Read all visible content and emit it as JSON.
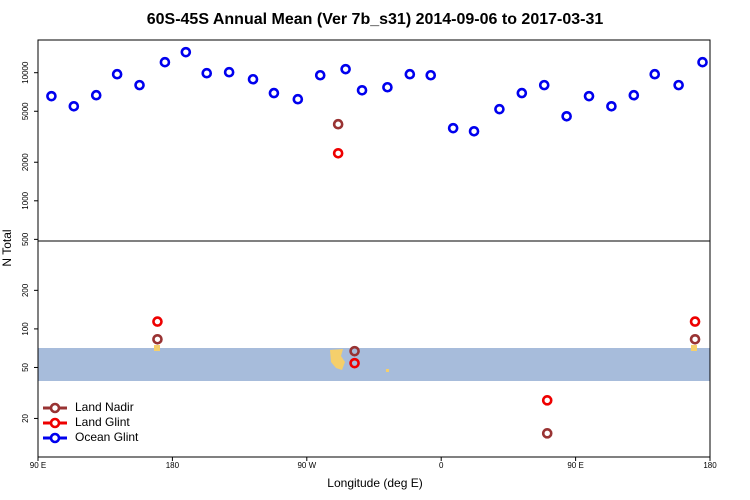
{
  "chart_data": {
    "type": "scatter",
    "title": "60S-45S Annual Mean (Ver 7b_s31)   2014-09-06 to 2017-03-31",
    "x_label": "Longitude (deg E)",
    "y_label": "N Total",
    "log_y": true,
    "legend": "lower left",
    "xlim": [
      90,
      540
    ],
    "xticks": [
      {
        "value": 90,
        "label": "90 E"
      },
      180,
      {
        "value": 270,
        "label": "90 W"
      },
      {
        "value": 360,
        "label": "0"
      },
      {
        "value": 450,
        "label": "90 E"
      },
      {
        "value": 540,
        "label": "180"
      }
    ],
    "ylim": [
      10,
      18000
    ],
    "yticks": [
      20,
      50,
      100,
      200,
      500,
      1000,
      2000,
      5000,
      10000
    ],
    "series": [
      {
        "name": "Land Nadir",
        "color": "#993333",
        "x": [
          291,
          170,
          302,
          431,
          530
        ],
        "values": [
          3960,
          83,
          67,
          15.3,
          83
        ]
      },
      {
        "name": "Land Glint",
        "color": "#ee0000",
        "x": [
          291,
          170,
          302,
          431,
          530
        ],
        "values": [
          2350,
          114,
          54,
          27.7,
          114
        ]
      },
      {
        "name": "Ocean Glint",
        "color": "#0000ee",
        "x": [
          99,
          114,
          129,
          143,
          158,
          175,
          189,
          203,
          218,
          234,
          248,
          264,
          279,
          296,
          307,
          324,
          339,
          353,
          368,
          382,
          399,
          414,
          429,
          444,
          459,
          474,
          489,
          503,
          519,
          535
        ],
        "values": [
          6560,
          5470,
          6670,
          9730,
          8000,
          12080,
          14460,
          9910,
          10090,
          8890,
          6930,
          6210,
          9550,
          10660,
          7290,
          7700,
          9730,
          9550,
          3690,
          3490,
          5190,
          6930,
          8000,
          4570,
          6560,
          5470,
          6670,
          9730,
          8000,
          12080
        ]
      }
    ]
  }
}
